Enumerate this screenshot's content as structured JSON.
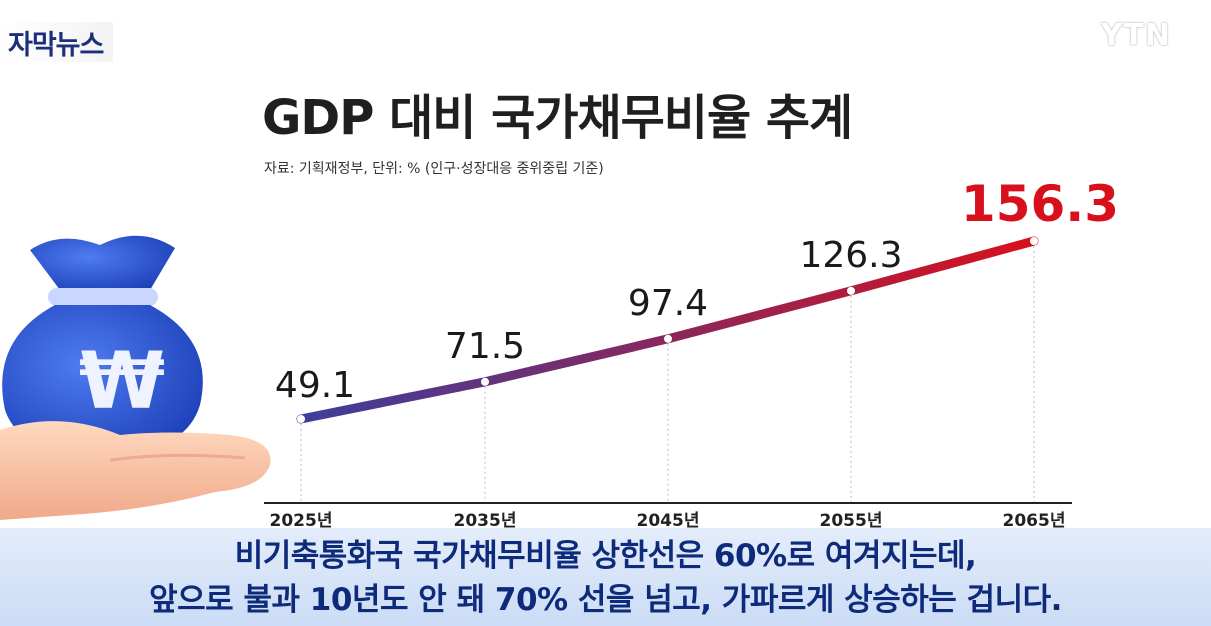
{
  "badge": {
    "label": "자막뉴스"
  },
  "broadcaster": {
    "logo": "YTN"
  },
  "chart_data": {
    "type": "line",
    "title": "GDP 대비 국가채무비율 추계",
    "subtitle": "자료: 기획재정부, 단위: % (인구·성장대응 중위중립 기준)",
    "categories": [
      "2025년",
      "2035년",
      "2045년",
      "2055년",
      "2065년"
    ],
    "values": [
      49.1,
      71.5,
      97.4,
      126.3,
      156.3
    ],
    "value_labels": [
      "49.1",
      "71.5",
      "97.4",
      "126.3",
      "156.3"
    ],
    "highlight_last": true,
    "colors": {
      "start": "#3c3f9c",
      "end": "#d8101c",
      "label": "#1a1a1a",
      "highlight": "#d8101c"
    },
    "ylim": [
      0,
      175
    ],
    "grid": false
  },
  "caption": {
    "line1": "비기축통화국 국가채무비율 상한선은 60%로 여겨지는데,",
    "line2": "앞으로 불과 10년도 안 돼 70% 선을 넘고, 가파르게 상승하는 겁니다."
  },
  "illustration": {
    "icon": "money-bag-won-icon",
    "symbol": "₩"
  }
}
